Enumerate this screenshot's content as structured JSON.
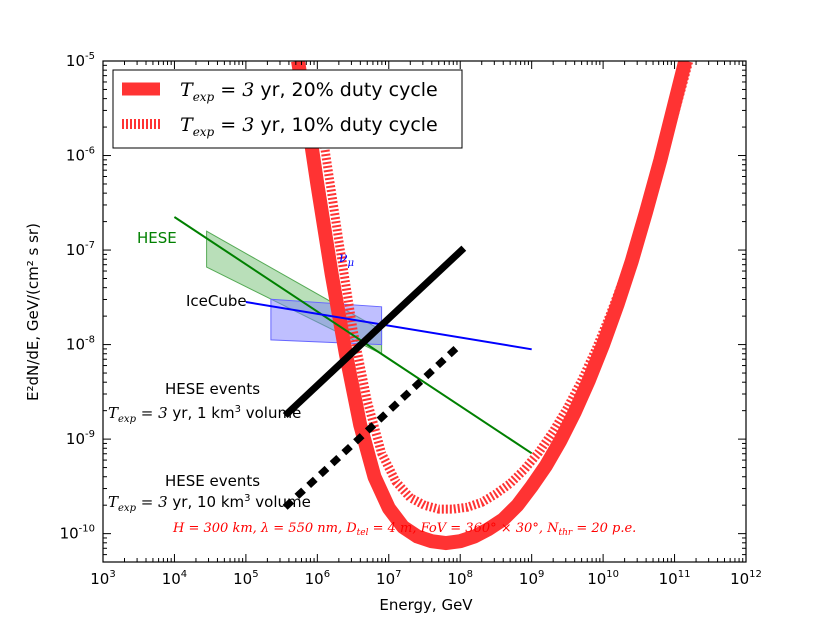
{
  "chart_data": {
    "type": "line",
    "title": "",
    "xlabel": "Energy, GeV",
    "ylabel": "E²dN/dE, GeV/(cm² s sr)",
    "xscale": "log",
    "yscale": "log",
    "xlim_log10": [
      3,
      12
    ],
    "ylim_log10": [
      -10.3,
      -5
    ],
    "x_ticks": [
      {
        "exp": 3,
        "base": "10",
        "sup": "3"
      },
      {
        "exp": 4,
        "base": "10",
        "sup": "4"
      },
      {
        "exp": 5,
        "base": "10",
        "sup": "5"
      },
      {
        "exp": 6,
        "base": "10",
        "sup": "6"
      },
      {
        "exp": 7,
        "base": "10",
        "sup": "7"
      },
      {
        "exp": 8,
        "base": "10",
        "sup": "8"
      },
      {
        "exp": 9,
        "base": "10",
        "sup": "9"
      },
      {
        "exp": 10,
        "base": "10",
        "sup": "10"
      },
      {
        "exp": 11,
        "base": "10",
        "sup": "11"
      },
      {
        "exp": 12,
        "base": "10",
        "sup": "12"
      }
    ],
    "y_ticks": [
      {
        "exp": -10,
        "base": "10",
        "sup": "-10"
      },
      {
        "exp": -9,
        "base": "10",
        "sup": "-9"
      },
      {
        "exp": -8,
        "base": "10",
        "sup": "-8"
      },
      {
        "exp": -7,
        "base": "10",
        "sup": "-7"
      },
      {
        "exp": -6,
        "base": "10",
        "sup": "-6"
      },
      {
        "exp": -5,
        "base": "10",
        "sup": "-5"
      }
    ],
    "legend": {
      "position": "top-left",
      "entries": [
        {
          "label_math": "T",
          "label_sub": "exp",
          "label_eq": " = 3",
          "label_rest": " yr, 20% duty cycle",
          "style": "solid-thick",
          "color": "#ff3333"
        },
        {
          "label_math": "T",
          "label_sub": "exp",
          "label_eq": " = 3",
          "label_rest": " yr, 10% duty cycle",
          "style": "dashed-thick",
          "color": "#ff3333"
        }
      ]
    },
    "series": [
      {
        "name": "sensitivity_20pct_duty",
        "color": "#ff3333",
        "points_log10": [
          [
            5.73,
            -5.0
          ],
          [
            5.85,
            -5.55
          ],
          [
            6.0,
            -6.3
          ],
          [
            6.2,
            -7.25
          ],
          [
            6.4,
            -8.1
          ],
          [
            6.6,
            -8.85
          ],
          [
            6.8,
            -9.4
          ],
          [
            7.0,
            -9.73
          ],
          [
            7.2,
            -9.93
          ],
          [
            7.4,
            -10.03
          ],
          [
            7.6,
            -10.08
          ],
          [
            7.8,
            -10.1
          ],
          [
            8.0,
            -10.08
          ],
          [
            8.2,
            -10.03
          ],
          [
            8.4,
            -9.95
          ],
          [
            8.6,
            -9.85
          ],
          [
            8.8,
            -9.7
          ],
          [
            9.0,
            -9.5
          ],
          [
            9.2,
            -9.28
          ],
          [
            9.4,
            -9.02
          ],
          [
            9.6,
            -8.72
          ],
          [
            9.8,
            -8.38
          ],
          [
            10.0,
            -8.0
          ],
          [
            10.2,
            -7.58
          ],
          [
            10.4,
            -7.12
          ],
          [
            10.6,
            -6.6
          ],
          [
            10.8,
            -6.05
          ],
          [
            11.0,
            -5.45
          ],
          [
            11.15,
            -5.0
          ]
        ]
      },
      {
        "name": "sensitivity_10pct_duty",
        "color": "#ff3333",
        "points_log10": [
          [
            6.1,
            -5.9
          ],
          [
            6.3,
            -6.9
          ],
          [
            6.5,
            -7.85
          ],
          [
            6.7,
            -8.6
          ],
          [
            6.9,
            -9.15
          ],
          [
            7.1,
            -9.45
          ],
          [
            7.3,
            -9.62
          ],
          [
            7.5,
            -9.7
          ],
          [
            7.7,
            -9.74
          ],
          [
            7.9,
            -9.74
          ],
          [
            8.1,
            -9.72
          ],
          [
            8.3,
            -9.67
          ],
          [
            8.5,
            -9.58
          ],
          [
            8.7,
            -9.47
          ],
          [
            8.9,
            -9.32
          ],
          [
            9.1,
            -9.14
          ],
          [
            9.3,
            -8.92
          ],
          [
            9.5,
            -8.67
          ],
          [
            9.7,
            -8.38
          ],
          [
            9.9,
            -8.05
          ],
          [
            10.1,
            -7.68
          ],
          [
            10.3,
            -7.28
          ],
          [
            10.5,
            -6.83
          ],
          [
            10.7,
            -6.35
          ],
          [
            10.9,
            -5.83
          ],
          [
            11.1,
            -5.28
          ],
          [
            11.2,
            -5.0
          ]
        ]
      },
      {
        "name": "HESE",
        "label": "HESE",
        "color": "#008000",
        "points_log10": [
          [
            4.0,
            -6.65
          ],
          [
            9.0,
            -9.15
          ]
        ],
        "band_log10": [
          [
            4.45,
            -6.8
          ],
          [
            6.9,
            -7.85
          ],
          [
            6.9,
            -8.1
          ],
          [
            4.45,
            -7.18
          ]
        ]
      },
      {
        "name": "IceCube_numu",
        "label": "IceCube",
        "annotation_base": "ν",
        "annotation_sub": "μ",
        "color": "#0000ff",
        "points_log10": [
          [
            5.0,
            -7.55
          ],
          [
            9.0,
            -8.05
          ]
        ],
        "band_log10": [
          [
            5.35,
            -7.52
          ],
          [
            6.9,
            -7.6
          ],
          [
            6.9,
            -8.0
          ],
          [
            5.35,
            -7.95
          ]
        ]
      },
      {
        "name": "HESE_events_1km3",
        "color": "#000000",
        "points_log10": [
          [
            5.55,
            -8.75
          ],
          [
            8.05,
            -6.98
          ]
        ]
      },
      {
        "name": "HESE_events_10km3",
        "color": "#000000",
        "points_log10": [
          [
            5.55,
            -9.72
          ],
          [
            8.0,
            -8.0
          ]
        ]
      }
    ],
    "annotations": {
      "hese_events_1": {
        "title": "HESE events",
        "t_sym": "T",
        "t_sub": "exp",
        "t_eq": " = 3",
        "rest": " yr, 1 km",
        "sup": "3",
        "tail": " volume"
      },
      "hese_events_2": {
        "title": "HESE events",
        "t_sym": "T",
        "t_sub": "exp",
        "t_eq": " = 3",
        "rest": " yr, 10 km",
        "sup": "3",
        "tail": " volume"
      },
      "params": "H = 300 km,  λ = 550 nm,  D",
      "params_d_sub": "tel",
      "params_mid": " = 4 m,  FoV = 360° × 30°,  N",
      "params_n_sub": "thr",
      "params_end": " = 20 p.e."
    }
  }
}
